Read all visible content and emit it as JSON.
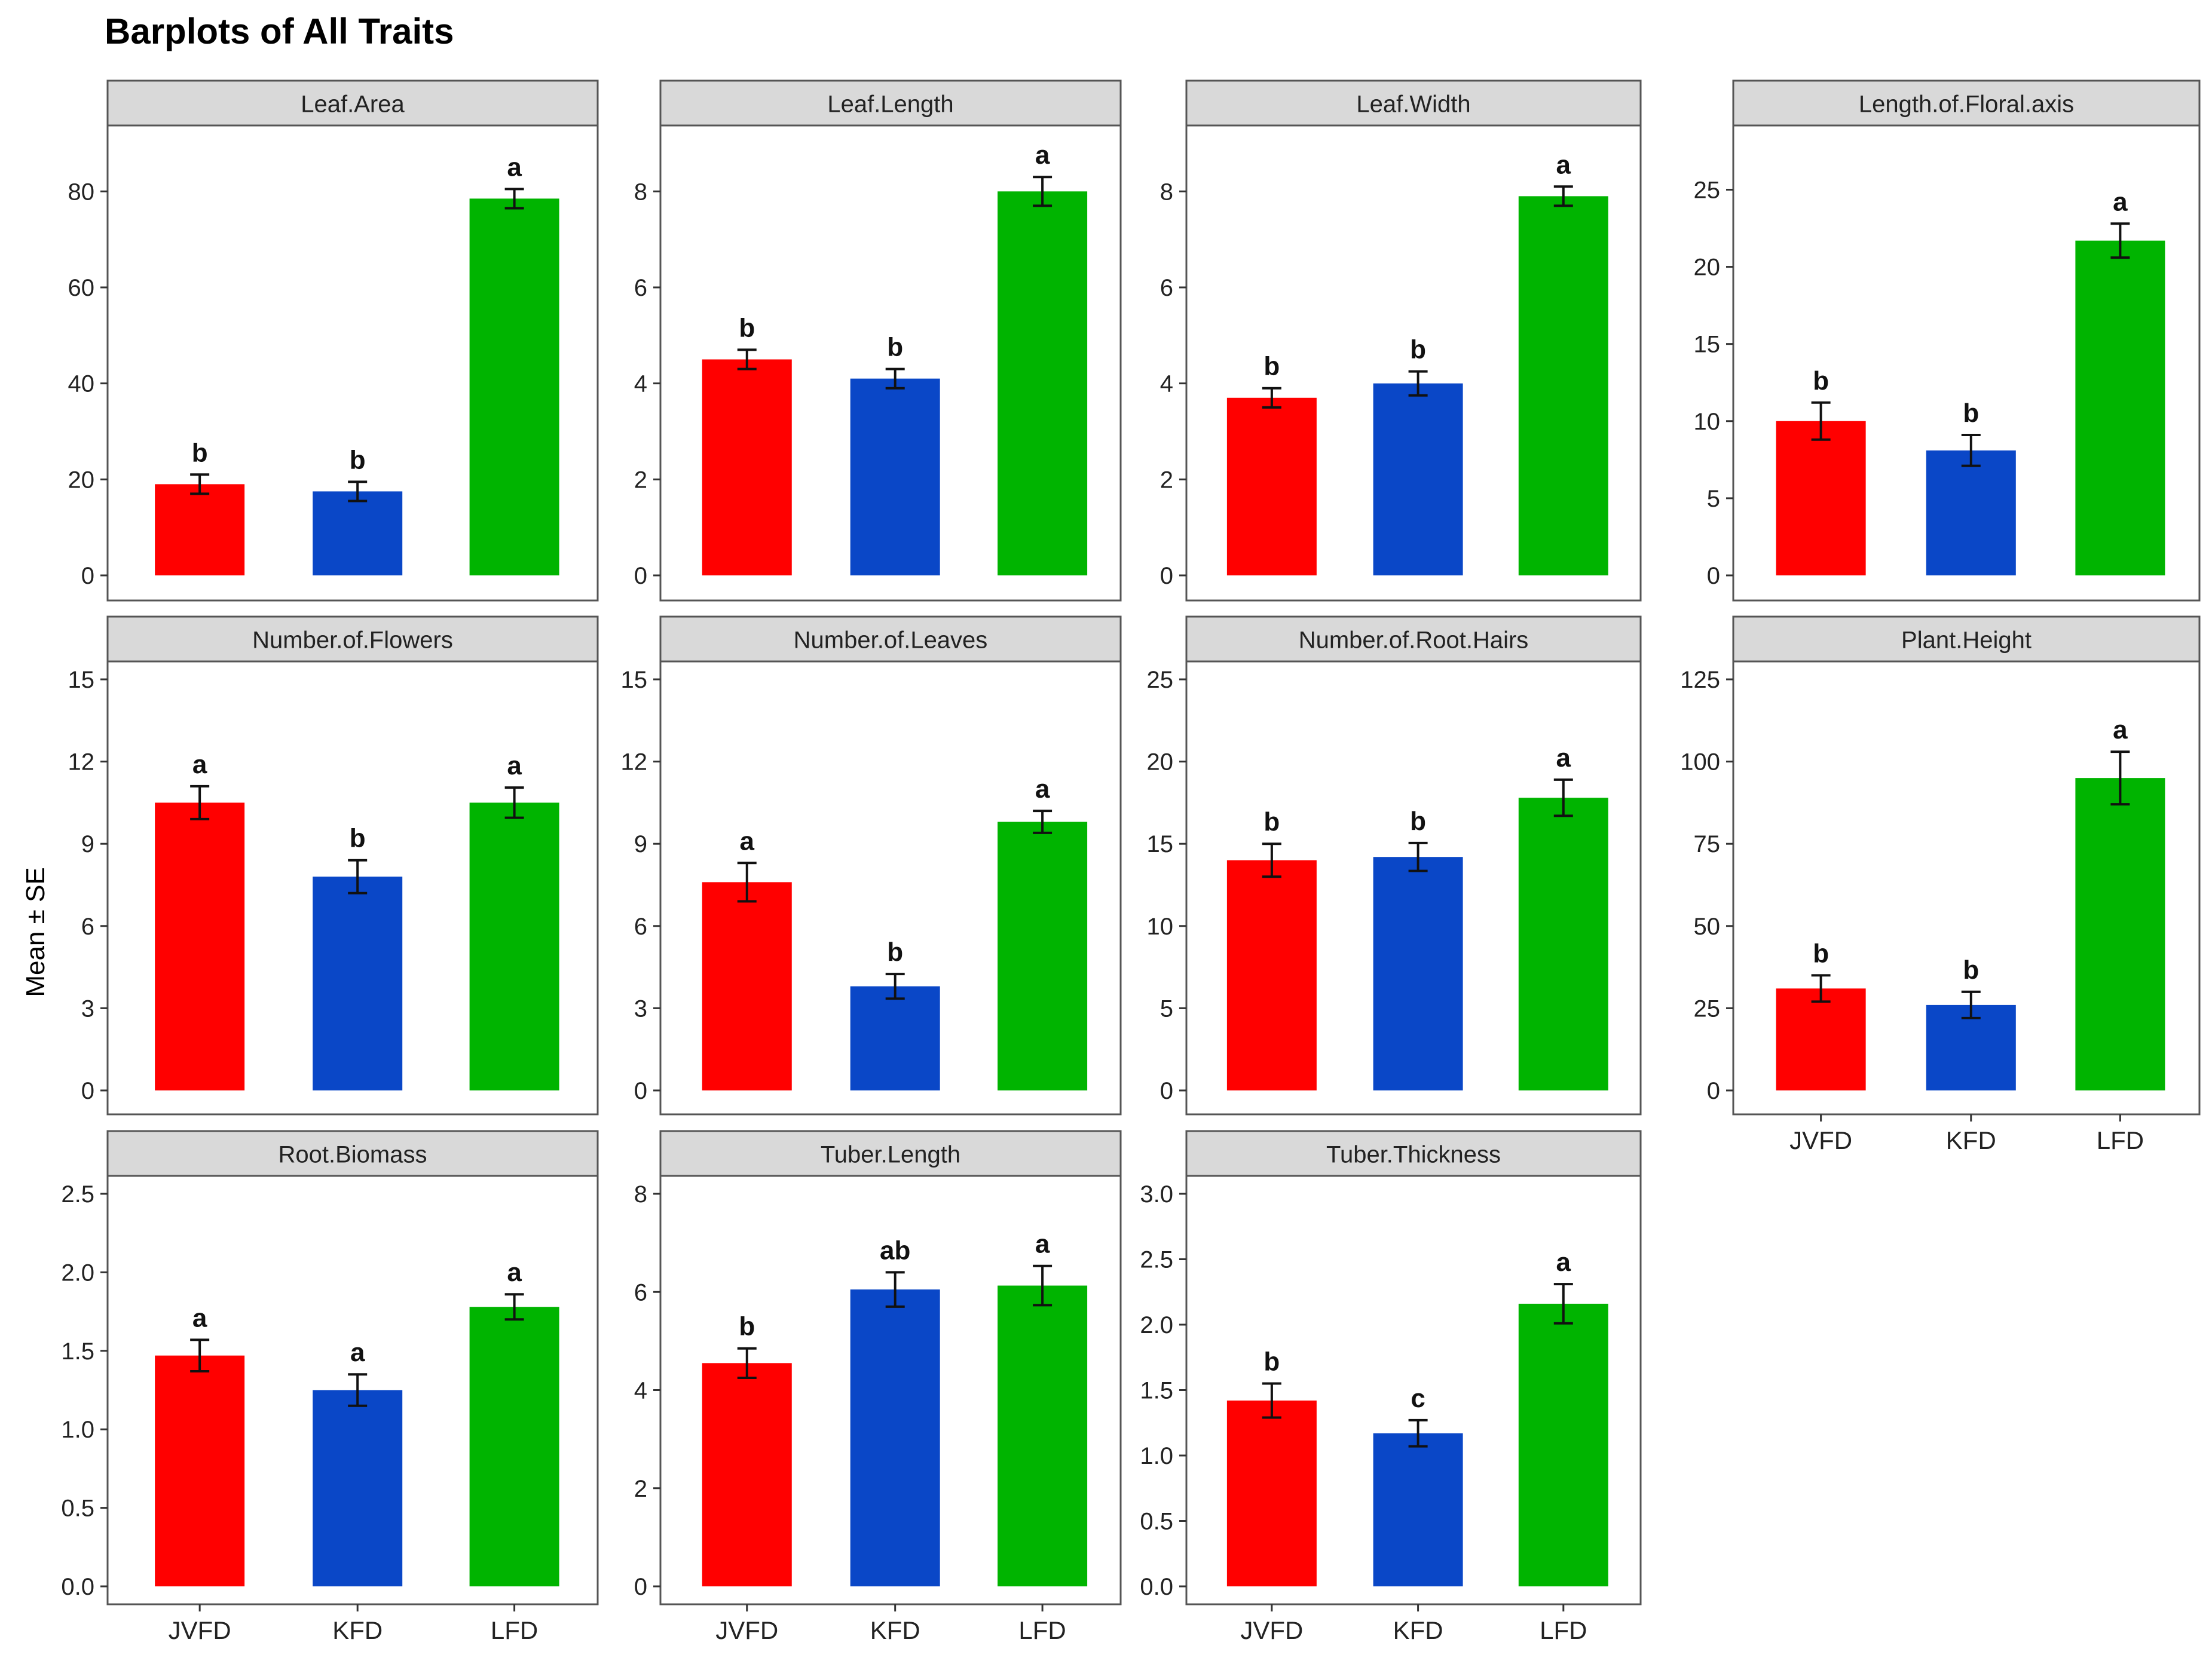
{
  "title": "Barplots of All Traits",
  "ylabel": "Mean ± SE",
  "colors": {
    "JVFD": "#ff0000",
    "KFD": "#0a47c7",
    "LFD": "#00b400"
  },
  "chart_data": [
    {
      "type": "bar",
      "title": "Leaf.Area",
      "categories": [
        "JVFD",
        "KFD",
        "LFD"
      ],
      "values": [
        19,
        17.5,
        78.5
      ],
      "errors": [
        2,
        2,
        2
      ],
      "letters": [
        "b",
        "b",
        "a"
      ],
      "ylim": [
        0,
        90
      ],
      "ticks": [
        0,
        20,
        40,
        60,
        80
      ],
      "xlabel": "",
      "ylabel": "Mean ± SE"
    },
    {
      "type": "bar",
      "title": "Leaf.Length",
      "categories": [
        "JVFD",
        "KFD",
        "LFD"
      ],
      "values": [
        4.5,
        4.1,
        8.0
      ],
      "errors": [
        0.2,
        0.2,
        0.3
      ],
      "letters": [
        "b",
        "b",
        "a"
      ],
      "ylim": [
        0,
        9
      ],
      "ticks": [
        0,
        2,
        4,
        6,
        8
      ],
      "xlabel": "",
      "ylabel": "Mean ± SE"
    },
    {
      "type": "bar",
      "title": "Leaf.Width",
      "categories": [
        "JVFD",
        "KFD",
        "LFD"
      ],
      "values": [
        3.7,
        4.0,
        7.9
      ],
      "errors": [
        0.2,
        0.25,
        0.2
      ],
      "letters": [
        "b",
        "b",
        "a"
      ],
      "ylim": [
        0,
        9
      ],
      "ticks": [
        0,
        2,
        4,
        6,
        8
      ],
      "xlabel": "",
      "ylabel": "Mean ± SE"
    },
    {
      "type": "bar",
      "title": "Length.of.Floral.axis",
      "categories": [
        "JVFD",
        "KFD",
        "LFD"
      ],
      "values": [
        10.0,
        8.1,
        21.7
      ],
      "errors": [
        1.2,
        1.0,
        1.1
      ],
      "letters": [
        "b",
        "b",
        "a"
      ],
      "ylim": [
        0,
        28
      ],
      "ticks": [
        0,
        5,
        10,
        15,
        20,
        25
      ],
      "xlabel": "",
      "ylabel": "Mean ± SE"
    },
    {
      "type": "bar",
      "title": "Number.of.Flowers",
      "categories": [
        "JVFD",
        "KFD",
        "LFD"
      ],
      "values": [
        10.5,
        7.8,
        10.5
      ],
      "errors": [
        0.6,
        0.6,
        0.55
      ],
      "letters": [
        "a",
        "b",
        "a"
      ],
      "ylim": [
        0,
        15
      ],
      "ticks": [
        0,
        3,
        6,
        9,
        12,
        15
      ],
      "xlabel": "",
      "ylabel": "Mean ± SE"
    },
    {
      "type": "bar",
      "title": "Number.of.Leaves",
      "categories": [
        "JVFD",
        "KFD",
        "LFD"
      ],
      "values": [
        7.6,
        3.8,
        9.8
      ],
      "errors": [
        0.7,
        0.45,
        0.4
      ],
      "letters": [
        "a",
        "b",
        "a"
      ],
      "ylim": [
        0,
        15
      ],
      "ticks": [
        0,
        3,
        6,
        9,
        12,
        15
      ],
      "xlabel": "",
      "ylabel": "Mean ± SE"
    },
    {
      "type": "bar",
      "title": "Number.of.Root.Hairs",
      "categories": [
        "JVFD",
        "KFD",
        "LFD"
      ],
      "values": [
        14.0,
        14.2,
        17.8
      ],
      "errors": [
        1.0,
        0.85,
        1.1
      ],
      "letters": [
        "b",
        "b",
        "a"
      ],
      "ylim": [
        0,
        25
      ],
      "ticks": [
        0,
        5,
        10,
        15,
        20,
        25
      ],
      "xlabel": "",
      "ylabel": "Mean ± SE"
    },
    {
      "type": "bar",
      "title": "Plant.Height",
      "categories": [
        "JVFD",
        "KFD",
        "LFD"
      ],
      "values": [
        31,
        26,
        95
      ],
      "errors": [
        4,
        4,
        8
      ],
      "letters": [
        "b",
        "b",
        "a"
      ],
      "ylim": [
        0,
        125
      ],
      "ticks": [
        0,
        25,
        50,
        75,
        100,
        125
      ],
      "xlabel": "",
      "ylabel": "Mean ± SE"
    },
    {
      "type": "bar",
      "title": "Root.Biomass",
      "categories": [
        "JVFD",
        "KFD",
        "LFD"
      ],
      "values": [
        1.47,
        1.25,
        1.78
      ],
      "errors": [
        0.1,
        0.1,
        0.08
      ],
      "letters": [
        "a",
        "a",
        "a"
      ],
      "ylim": [
        0,
        2.5
      ],
      "ticks": [
        "0.0",
        "0.5",
        "1.0",
        "1.5",
        "2.0",
        "2.5"
      ],
      "xlabel": "",
      "ylabel": "Mean ± SE"
    },
    {
      "type": "bar",
      "title": "Tuber.Length",
      "categories": [
        "JVFD",
        "KFD",
        "LFD"
      ],
      "values": [
        4.55,
        6.05,
        6.13
      ],
      "errors": [
        0.3,
        0.35,
        0.4
      ],
      "letters": [
        "b",
        "ab",
        "a"
      ],
      "ylim": [
        0,
        8
      ],
      "ticks": [
        0,
        2,
        4,
        6,
        8
      ],
      "xlabel": "",
      "ylabel": "Mean ± SE"
    },
    {
      "type": "bar",
      "title": "Tuber.Thickness",
      "categories": [
        "JVFD",
        "KFD",
        "LFD"
      ],
      "values": [
        1.42,
        1.17,
        2.16
      ],
      "errors": [
        0.13,
        0.1,
        0.15
      ],
      "letters": [
        "b",
        "c",
        "a"
      ],
      "ylim": [
        0,
        3.0
      ],
      "ticks": [
        "0.0",
        "0.5",
        "1.0",
        "1.5",
        "2.0",
        "2.5",
        "3.0"
      ],
      "xlabel": "",
      "ylabel": "Mean ± SE"
    }
  ]
}
